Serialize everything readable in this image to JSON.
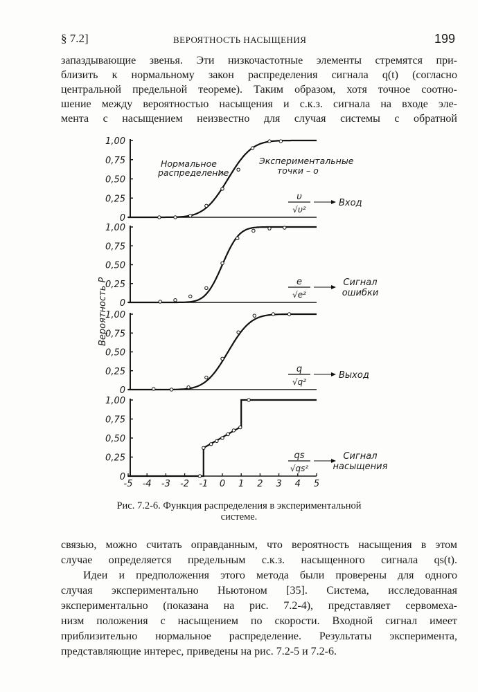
{
  "header": {
    "section": "§ 7.2]",
    "title": "ВЕРОЯТНОСТЬ НАСЫЩЕНИЯ",
    "page_number": "199"
  },
  "top_lines": [
    "запаздывающие звенья. Эти низкочастотные элементы стремятся при-",
    "близить к нормальному закон распределения сигнала q(t) (согласно",
    "центральной предельной теореме). Таким образом, хотя точное соотно-",
    "шение между вероятностью насыщения и с.к.з. сигнала на входе эле-",
    "мента с насыщением неизвестно для случая системы с обратной"
  ],
  "caption": {
    "line1": "Рис. 7.2-6. Функция распределения в экспериментальной",
    "line2": "системе."
  },
  "bottom_lines": [
    "связью, можно считать оправданным, что вероятность насыщения в этом",
    "случае определяется предельным с.к.з. насыщенного сигнала qs(t).",
    "Идеи и предположения этого метода были проверены для одного",
    "случая экспериментально Ньютоном [35]. Система, исследованная",
    "экспериментально (показана на рис. 7.2-4), представляет сервомеха-",
    "низм положения с насыщением по скорости. Входной сигнал имеет",
    "приблизительно нормальное распределение. Результаты эксперимента,",
    "представляющие интерес, приведены на рис. 7.2-5 и 7.2-6."
  ],
  "chart_data": {
    "type": "line",
    "ylabel": "Вероятность P",
    "x_ticks": [
      "-5",
      "-4",
      "-3",
      "-2",
      "-1",
      "0",
      "1",
      "2",
      "3",
      "4",
      "5"
    ],
    "xlim": [
      -5,
      5
    ],
    "ylim": [
      0,
      1
    ],
    "y_ticks": [
      "0",
      "0,25",
      "0,50",
      "0,75",
      "1,00"
    ],
    "annotations": {
      "normal": [
        "Нормальное",
        "распределение"
      ],
      "experimental": [
        "Экспериментальные",
        "точки – o"
      ]
    },
    "panels": [
      {
        "name": "input",
        "num": "υ",
        "den": "υ²",
        "label": [
          "Вход"
        ],
        "curve": {
          "model": "normal",
          "mean": 0.3,
          "sd": 1.0
        },
        "points": [
          [
            -3.35,
            0
          ],
          [
            -2.5,
            0
          ],
          [
            -1.7,
            0.02
          ],
          [
            -0.85,
            0.15
          ],
          [
            0,
            0.37
          ],
          [
            0.85,
            0.62
          ],
          [
            1.6,
            0.9
          ],
          [
            2.5,
            0.99
          ],
          [
            3.1,
            0.99
          ]
        ]
      },
      {
        "name": "error",
        "num": "e",
        "den": "e²",
        "label": [
          "Сигнал",
          "ошибки"
        ],
        "curve": {
          "model": "normal",
          "mean": 0.0,
          "sd": 0.7
        },
        "points": [
          [
            -3.3,
            0.01
          ],
          [
            -2.5,
            0.03
          ],
          [
            -1.7,
            0.08
          ],
          [
            -0.85,
            0.19
          ],
          [
            0,
            0.52
          ],
          [
            0.8,
            0.85
          ],
          [
            1.65,
            0.95
          ],
          [
            2.5,
            0.98
          ],
          [
            3.3,
            0.99
          ]
        ]
      },
      {
        "name": "output",
        "num": "q",
        "den": "q²",
        "label": [
          "Выход"
        ],
        "curve": {
          "model": "normal",
          "mean": 0.3,
          "sd": 0.95
        },
        "points": [
          [
            -3.65,
            0.01
          ],
          [
            -2.7,
            0
          ],
          [
            -1.8,
            0.03
          ],
          [
            -0.85,
            0.16
          ],
          [
            0,
            0.41
          ],
          [
            0.85,
            0.76
          ],
          [
            1.7,
            0.98
          ],
          [
            2.7,
            1.0
          ],
          [
            3.55,
            1.0
          ]
        ]
      },
      {
        "name": "saturation",
        "num": "qs",
        "den": "qs²",
        "label": [
          "Сигнал",
          "насыщения"
        ],
        "curve": {
          "model": "step",
          "steps": [
            [
              -5,
              0
            ],
            [
              -1,
              0
            ],
            [
              -1,
              0.37
            ],
            [
              1,
              0.65
            ],
            [
              1,
              1.0
            ],
            [
              5,
              1.0
            ]
          ]
        },
        "points": [
          [
            -1.2,
            0
          ],
          [
            -1,
            0.37
          ],
          [
            -0.6,
            0.42
          ],
          [
            -0.3,
            0.46
          ],
          [
            0,
            0.5
          ],
          [
            0.3,
            0.55
          ],
          [
            0.6,
            0.6
          ],
          [
            0.95,
            0.64
          ],
          [
            1.4,
            1.0
          ]
        ]
      }
    ]
  }
}
